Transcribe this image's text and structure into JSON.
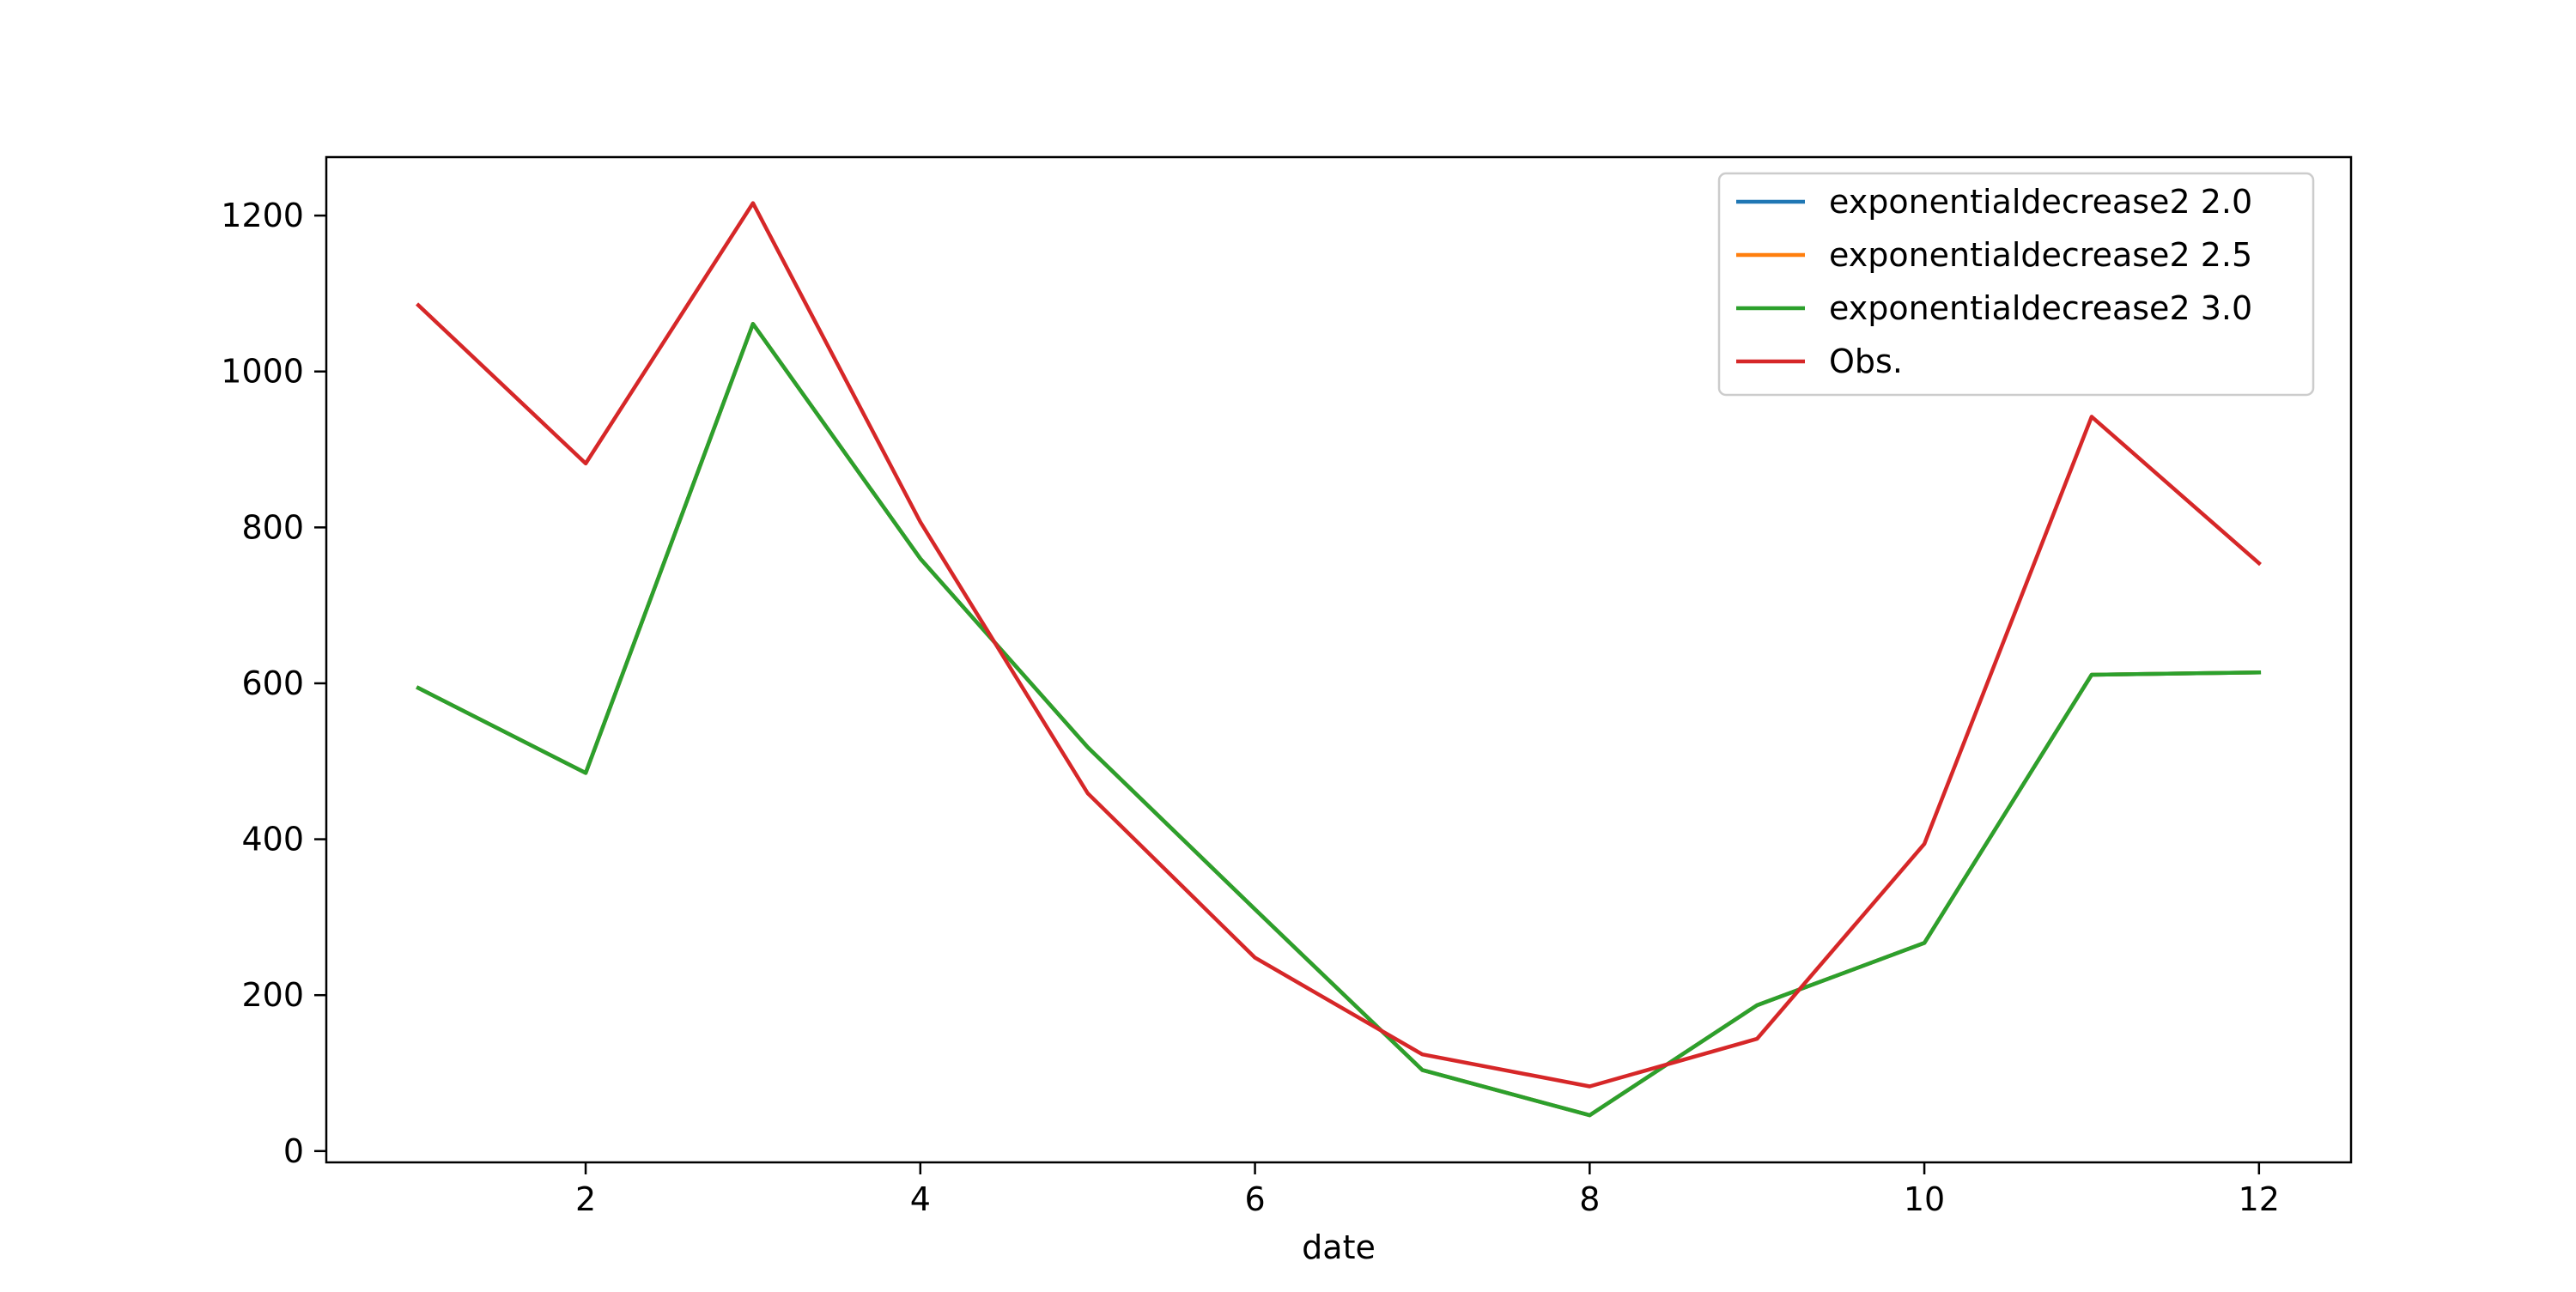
{
  "chart_data": {
    "type": "line",
    "title": "",
    "xlabel": "date",
    "ylabel": "",
    "xlim": [
      0.45,
      12.55
    ],
    "ylim": [
      -14.5,
      1275
    ],
    "xticks": [
      2,
      4,
      6,
      8,
      10,
      12
    ],
    "yticks": [
      0,
      200,
      400,
      600,
      800,
      1000,
      1200
    ],
    "grid": false,
    "legend_position": "top-right",
    "x": [
      1,
      2,
      3,
      4,
      5,
      6,
      7,
      8,
      9,
      10,
      11,
      12
    ],
    "series": [
      {
        "name": "exponentialdecrease2 2.0",
        "color": "#1f77b4",
        "values": [
          594,
          485,
          1061,
          760,
          518,
          310,
          104,
          46,
          187,
          267,
          611,
          614
        ]
      },
      {
        "name": "exponentialdecrease2 2.5",
        "color": "#ff7f0e",
        "values": [
          594,
          485,
          1061,
          760,
          518,
          310,
          104,
          46,
          187,
          267,
          611,
          614
        ]
      },
      {
        "name": "exponentialdecrease2 3.0",
        "color": "#2ca02c",
        "values": [
          594,
          485,
          1061,
          760,
          518,
          310,
          104,
          46,
          187,
          267,
          611,
          614
        ]
      },
      {
        "name": "Obs.",
        "color": "#d62728",
        "values": [
          1085,
          882,
          1216,
          807,
          459,
          248,
          124,
          83,
          144,
          394,
          942,
          754
        ]
      }
    ]
  }
}
